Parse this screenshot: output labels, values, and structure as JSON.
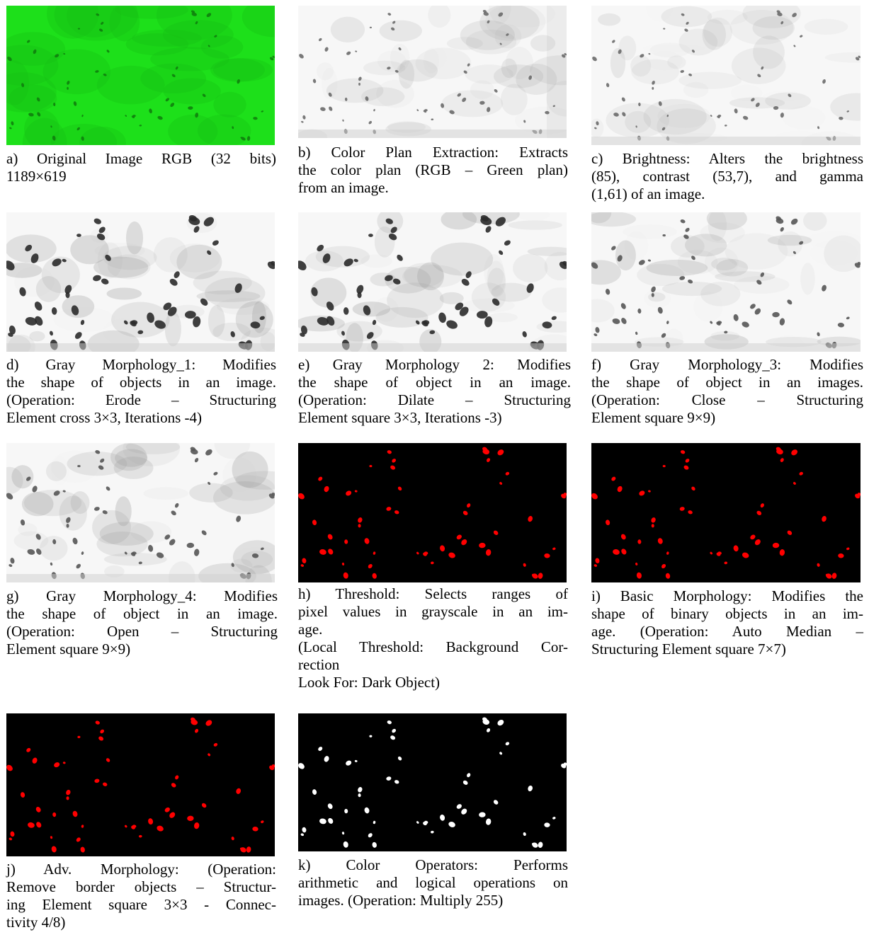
{
  "figure": {
    "panels": [
      {
        "id": "a",
        "style": "green",
        "caption": [
          "a) Original Image RGB (32 bits)",
          "1189×619"
        ]
      },
      {
        "id": "b",
        "style": "gray-light",
        "caption": [
          "b) Color Plan Extraction: Extracts",
          "the color plan (RGB – Green plan)",
          "from an image."
        ]
      },
      {
        "id": "c",
        "style": "gray-light",
        "caption": [
          "c) Brightness: Alters the brightness",
          "(85), contrast (53,7), and gamma",
          "(1,61) of an image."
        ]
      },
      {
        "id": "d",
        "style": "gray-dark",
        "caption": [
          "d) Gray Morphology_1: Modifies",
          "the shape of objects in an image.",
          "(Operation: Erode – Structuring",
          "Element cross 3×3, Iterations -4)"
        ]
      },
      {
        "id": "e",
        "style": "gray-dark",
        "caption": [
          "e) Gray Morphology 2: Modifies",
          "the shape of object in an image.",
          "(Operation: Dilate – Structuring",
          "Element square 3×3, Iterations -3)"
        ]
      },
      {
        "id": "f",
        "style": "gray-medium",
        "caption": [
          "f) Gray Morphology_3: Modifies",
          "the shape of object in an images.",
          "(Operation: Close – Structuring",
          "Element square 9×9)"
        ]
      },
      {
        "id": "g",
        "style": "gray-medium",
        "caption": [
          "g) Gray Morphology_4: Modifies",
          "the shape of object in an image.",
          "(Operation: Open – Structuring",
          "Element square 9×9)"
        ]
      },
      {
        "id": "h",
        "style": "red",
        "caption": [
          "h) Threshold: Selects ranges of",
          "pixel values in grayscale in an im-",
          "age.",
          "(Local Threshold: Background Cor-",
          "rection",
          "Look For: Dark Object)"
        ]
      },
      {
        "id": "i",
        "style": "red",
        "caption": [
          "i) Basic Morphology: Modifies the",
          "shape of binary objects in an im-",
          "age. (Operation: Auto Median –",
          "Structuring Element square 7×7)"
        ]
      },
      {
        "id": "j",
        "style": "red",
        "caption": [
          "j) Adv. Morphology: (Operation:",
          "Remove border objects – Structur-",
          "ing Element square 3×3 - Connec-",
          "tivity 4/8)"
        ]
      },
      {
        "id": "k",
        "style": "white",
        "caption": [
          "k) Color Operators: Performs",
          "arithmetic and logical operations on",
          "images. (Operation: Multiply 255)"
        ]
      }
    ],
    "colors": {
      "green": "#1de01a",
      "red": "#ff0000",
      "black": "#000000",
      "white": "#ffffff"
    }
  }
}
